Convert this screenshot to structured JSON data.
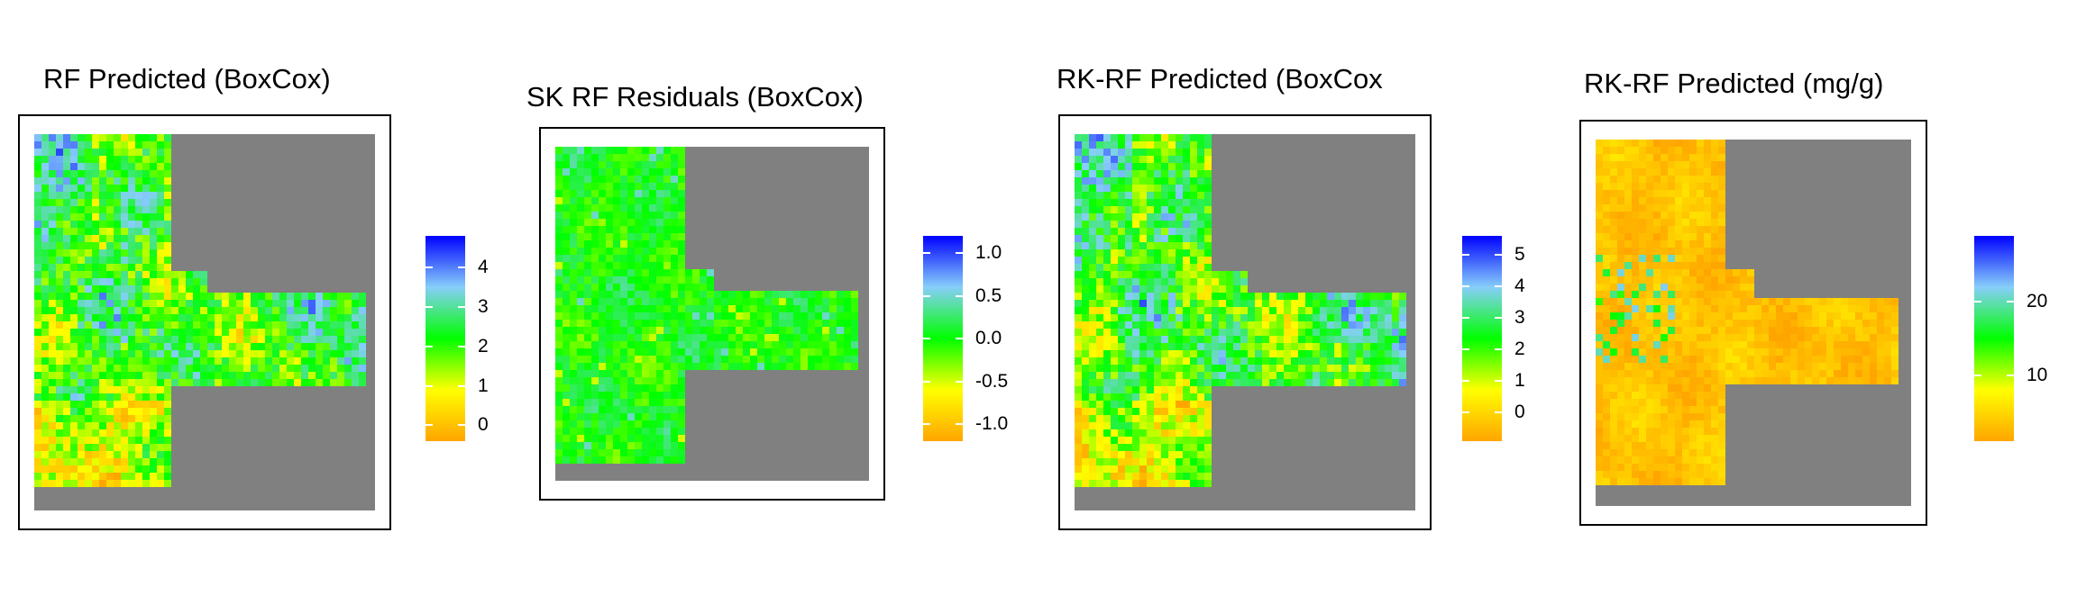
{
  "colors": {
    "nodata": "#808080",
    "scale": [
      "#ffa500",
      "#ffff00",
      "#00ff00",
      "#87cefa",
      "#0000ff"
    ]
  },
  "panels": [
    {
      "title": "RF Predicted (BoxCox)",
      "legend_ticks": [
        "4",
        "3",
        "2",
        "1",
        "0"
      ],
      "tick_values": [
        4,
        3,
        2,
        1,
        0
      ],
      "scale_range": [
        -0.4,
        4.8
      ],
      "dominant": "mixed"
    },
    {
      "title": "SK RF Residuals (BoxCox)",
      "legend_ticks": [
        "1.0",
        "0.5",
        "0.0",
        "-0.5",
        "-1.0"
      ],
      "tick_values": [
        1.0,
        0.5,
        0.0,
        -0.5,
        -1.0
      ],
      "scale_range": [
        -1.2,
        1.2
      ],
      "dominant": "green"
    },
    {
      "title": "RK-RF Predicted (BoxCox",
      "legend_ticks": [
        "5",
        "4",
        "3",
        "2",
        "1",
        "0"
      ],
      "tick_values": [
        5,
        4,
        3,
        2,
        1,
        0
      ],
      "scale_range": [
        -0.9,
        5.6
      ],
      "dominant": "mixed"
    },
    {
      "title": "RK-RF Predicted (mg/g)",
      "legend_ticks": [
        "20",
        "10"
      ],
      "tick_values": [
        20,
        10
      ],
      "scale_range": [
        1,
        29
      ],
      "dominant": "orange"
    }
  ]
}
